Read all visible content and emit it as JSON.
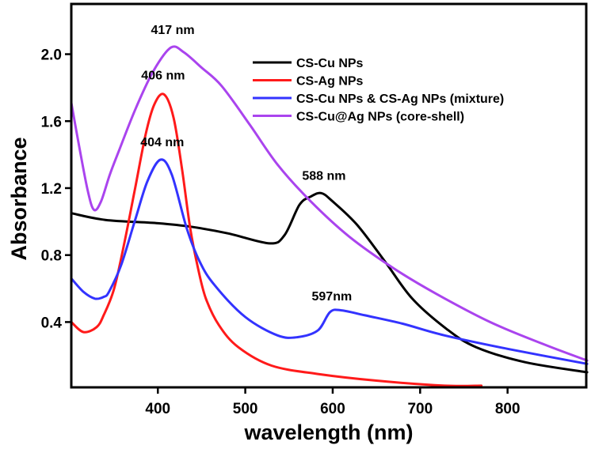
{
  "chart_data": {
    "type": "line",
    "title": "",
    "xlabel": "wavelength (nm)",
    "ylabel": "Absorbance",
    "xlim": [
      301,
      890
    ],
    "ylim": [
      0.01,
      2.3
    ],
    "xticks": [
      400,
      500,
      600,
      700,
      800
    ],
    "xtick_labels": [
      "400",
      "500",
      "600",
      "700",
      "800"
    ],
    "yticks": [
      0.4,
      0.8,
      1.2,
      1.6,
      2.0
    ],
    "ytick_labels": [
      "0.4",
      "0.8",
      "1.2",
      "1.6",
      "2.0"
    ],
    "grid": false,
    "legend_position": "top-right",
    "series": [
      {
        "name": "CS-Cu NPs",
        "color": "#000000",
        "x": [
          301,
          340,
          400,
          437,
          480,
          528,
          545,
          562,
          575,
          587,
          600,
          628,
          660,
          691,
          730,
          764,
          820,
          891
        ],
        "y": [
          1.05,
          1.01,
          0.99,
          0.97,
          0.93,
          0.87,
          0.92,
          1.1,
          1.15,
          1.17,
          1.12,
          0.98,
          0.76,
          0.54,
          0.36,
          0.25,
          0.16,
          0.1
        ]
      },
      {
        "name": "CS-Ag NPs",
        "color": "#ff1a1a",
        "x": [
          301,
          315,
          330,
          338,
          350,
          362,
          374,
          386,
          396,
          407,
          418,
          428,
          437,
          446,
          455,
          470,
          492,
          530,
          583,
          650,
          728,
          770
        ],
        "y": [
          0.4,
          0.34,
          0.37,
          0.44,
          0.6,
          0.88,
          1.2,
          1.52,
          1.7,
          1.76,
          1.62,
          1.3,
          0.96,
          0.72,
          0.54,
          0.38,
          0.25,
          0.14,
          0.09,
          0.05,
          0.02,
          0.02
        ]
      },
      {
        "name": "CS-Cu NPs & CS-Ag NPs (mixture)",
        "color": "#3333ff",
        "x": [
          301,
          315,
          328,
          338,
          344,
          358,
          374,
          388,
          403,
          416,
          433,
          448,
          465,
          500,
          537,
          560,
          583,
          597,
          610,
          637,
          680,
          728,
          800,
          891
        ],
        "y": [
          0.66,
          0.58,
          0.54,
          0.55,
          0.58,
          0.74,
          1.01,
          1.24,
          1.37,
          1.28,
          0.96,
          0.76,
          0.62,
          0.43,
          0.32,
          0.31,
          0.35,
          0.46,
          0.47,
          0.44,
          0.39,
          0.32,
          0.24,
          0.15
        ]
      },
      {
        "name": "CS-Cu@Ag NPs (core-shell)",
        "color": "#aa44ee",
        "x": [
          301,
          310,
          320,
          327,
          335,
          345,
          356,
          375,
          395,
          415,
          430,
          450,
          473,
          505,
          537,
          575,
          619,
          670,
          718,
          780,
          840,
          891
        ],
        "y": [
          1.71,
          1.45,
          1.18,
          1.07,
          1.12,
          1.28,
          1.43,
          1.68,
          1.9,
          2.04,
          2.01,
          1.92,
          1.81,
          1.58,
          1.34,
          1.12,
          0.91,
          0.72,
          0.57,
          0.4,
          0.27,
          0.17
        ]
      }
    ],
    "annotations": [
      {
        "text": "417 nm",
        "x": 417,
        "y": 2.12
      },
      {
        "text": "406 nm",
        "x": 406,
        "y": 1.85
      },
      {
        "text": "404 nm",
        "x": 405,
        "y": 1.45
      },
      {
        "text": "588 nm",
        "x": 590,
        "y": 1.25
      },
      {
        "text": "597nm",
        "x": 599,
        "y": 0.53
      }
    ]
  }
}
